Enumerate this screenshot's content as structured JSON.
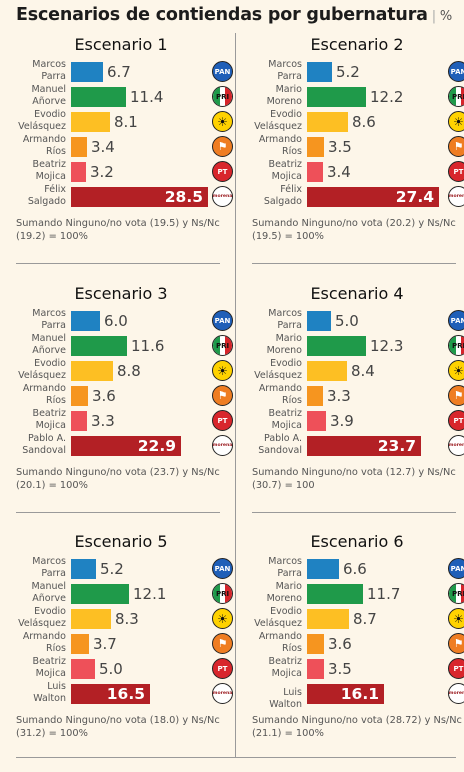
{
  "title": "Escenarios de contiendas por gubernatura",
  "unit": "%",
  "colors": {
    "PAN": "#1f82c2",
    "PRI": "#1f9a4a",
    "PRD": "#fdbf23",
    "MC": "#f6951f",
    "PT": "#ee5059",
    "MORENA": "#b32025"
  },
  "party_icons": {
    "PAN": "pan-logo-icon",
    "PRI": "pri-logo-icon",
    "PRD": "prd-logo-icon",
    "MC": "movimiento-ciudadano-logo-icon",
    "PT": "pt-logo-icon",
    "MORENA": "morena-logo-icon"
  },
  "logo_text": {
    "PAN": "PAN",
    "PRI": "PRI",
    "PT": "PT",
    "MORENA": "morena"
  },
  "chart_data": [
    {
      "type": "bar",
      "title": "Escenario 1",
      "categories": [
        "Marcos Parra",
        "Manuel Añorve",
        "Evodio Velásquez",
        "Armando Ríos",
        "Beatriz Mojica",
        "Félix Salgado"
      ],
      "name_lines": [
        [
          "Marcos",
          "Parra"
        ],
        [
          "Manuel",
          "Añorve"
        ],
        [
          "Evodio",
          "Velásquez"
        ],
        [
          "Armando",
          "Ríos"
        ],
        [
          "Beatriz",
          "Mojica"
        ],
        [
          "Félix",
          "Salgado"
        ]
      ],
      "parties": [
        "PAN",
        "PRI",
        "PRD",
        "MC",
        "PT",
        "MORENA"
      ],
      "values": [
        6.7,
        11.4,
        8.1,
        3.4,
        3.2,
        28.5
      ],
      "labels": [
        "6.7",
        "11.4",
        "8.1",
        "3.4",
        "3.2",
        "28.5"
      ],
      "note": "Sumando Ninguno/no vota (19.5) y Ns/Nc (19.2) = 100%"
    },
    {
      "type": "bar",
      "title": "Escenario 2",
      "categories": [
        "Marcos Parra",
        "Mario Moreno",
        "Evodio Velásquez",
        "Armando Ríos",
        "Beatriz Mojica",
        "Félix Salgado"
      ],
      "name_lines": [
        [
          "Marcos",
          "Parra"
        ],
        [
          "Mario",
          "Moreno"
        ],
        [
          "Evodio",
          "Velásquez"
        ],
        [
          "Armando",
          "Ríos"
        ],
        [
          "Beatriz",
          "Mojica"
        ],
        [
          "Félix",
          "Salgado"
        ]
      ],
      "parties": [
        "PAN",
        "PRI",
        "PRD",
        "MC",
        "PT",
        "MORENA"
      ],
      "values": [
        5.2,
        12.2,
        8.6,
        3.5,
        3.4,
        27.4
      ],
      "labels": [
        "5.2",
        "12.2",
        "8.6",
        "3.5",
        "3.4",
        "27.4"
      ],
      "note": "Sumando Ninguno/no vota (20.2) y Ns/Nc (19.5) = 100%"
    },
    {
      "type": "bar",
      "title": "Escenario 3",
      "categories": [
        "Marcos Parra",
        "Manuel Añorve",
        "Evodio Velásquez",
        "Armando Ríos",
        "Beatriz Mojica",
        "Pablo A. Sandoval"
      ],
      "name_lines": [
        [
          "Marcos",
          "Parra"
        ],
        [
          "Manuel",
          "Añorve"
        ],
        [
          "Evodio",
          "Velásquez"
        ],
        [
          "Armando",
          "Ríos"
        ],
        [
          "Beatriz",
          "Mojica"
        ],
        [
          "Pablo A.",
          "Sandoval"
        ]
      ],
      "parties": [
        "PAN",
        "PRI",
        "PRD",
        "MC",
        "PT",
        "MORENA"
      ],
      "values": [
        6.0,
        11.6,
        8.8,
        3.6,
        3.3,
        22.9
      ],
      "labels": [
        "6.0",
        "11.6",
        "8.8",
        "3.6",
        "3.3",
        "22.9"
      ],
      "note": "Sumando Ninguno/no vota (23.7) y Ns/Nc (20.1) = 100%"
    },
    {
      "type": "bar",
      "title": "Escenario 4",
      "categories": [
        "Marcos Parra",
        "Mario Moreno",
        "Evodio Velásquez",
        "Armando Ríos",
        "Beatriz Mojica",
        "Pablo A. Sandoval"
      ],
      "name_lines": [
        [
          "Marcos",
          "Parra"
        ],
        [
          "Mario",
          "Moreno"
        ],
        [
          "Evodio",
          "Velásquez"
        ],
        [
          "Armando",
          "Ríos"
        ],
        [
          "Beatriz",
          "Mojica"
        ],
        [
          "Pablo A.",
          "Sandoval"
        ]
      ],
      "parties": [
        "PAN",
        "PRI",
        "PRD",
        "MC",
        "PT",
        "MORENA"
      ],
      "values": [
        5.0,
        12.3,
        8.4,
        3.3,
        3.9,
        23.7
      ],
      "labels": [
        "5.0",
        "12.3",
        "8.4",
        "3.3",
        "3.9",
        "23.7"
      ],
      "note": "Sumando Ninguno/no vota (12.7) y Ns/Nc (30.7) = 100"
    },
    {
      "type": "bar",
      "title": "Escenario 5",
      "categories": [
        "Marcos Parra",
        "Manuel Añorve",
        "Evodio Velásquez",
        "Armando Ríos",
        "Beatriz Mojica",
        "Luis Walton"
      ],
      "name_lines": [
        [
          "Marcos",
          "Parra"
        ],
        [
          "Manuel",
          "Añorve"
        ],
        [
          "Evodio",
          "Velásquez"
        ],
        [
          "Armando",
          "Ríos"
        ],
        [
          "Beatriz",
          "Mojica"
        ],
        [
          "Luis",
          "Walton"
        ]
      ],
      "parties": [
        "PAN",
        "PRI",
        "PRD",
        "MC",
        "PT",
        "MORENA"
      ],
      "values": [
        5.2,
        12.1,
        8.3,
        3.7,
        5.0,
        16.5
      ],
      "labels": [
        "5.2",
        "12.1",
        "8.3",
        "3.7",
        "5.0",
        "16.5"
      ],
      "note": "Sumando Ninguno/no vota (18.0) y Ns/Nc (31.2) = 100%"
    },
    {
      "type": "bar",
      "title": "Escenario 6",
      "categories": [
        "Marcos Parra",
        "Mario Moreno",
        "Evodio Velásquez",
        "Armando Ríos",
        "Beatriz Mojica",
        "Luis Walton"
      ],
      "name_lines": [
        [
          "Marcos",
          "Parra"
        ],
        [
          "Mario",
          "Moreno"
        ],
        [
          "Evodio",
          "Velásquez"
        ],
        [
          "Armando",
          "Ríos"
        ],
        [
          "Beatriz",
          "Mojica"
        ],
        [
          "Luis Walton"
        ]
      ],
      "parties": [
        "PAN",
        "PRI",
        "PRD",
        "MC",
        "PT",
        "MORENA"
      ],
      "values": [
        6.6,
        11.7,
        8.7,
        3.6,
        3.5,
        16.1
      ],
      "labels": [
        "6.6",
        "11.7",
        "8.7",
        "3.6",
        "3.5",
        "16.1"
      ],
      "note": "Sumando Ninguno/no vota (28.72) y Ns/Nc (21.1) = 100%"
    }
  ]
}
